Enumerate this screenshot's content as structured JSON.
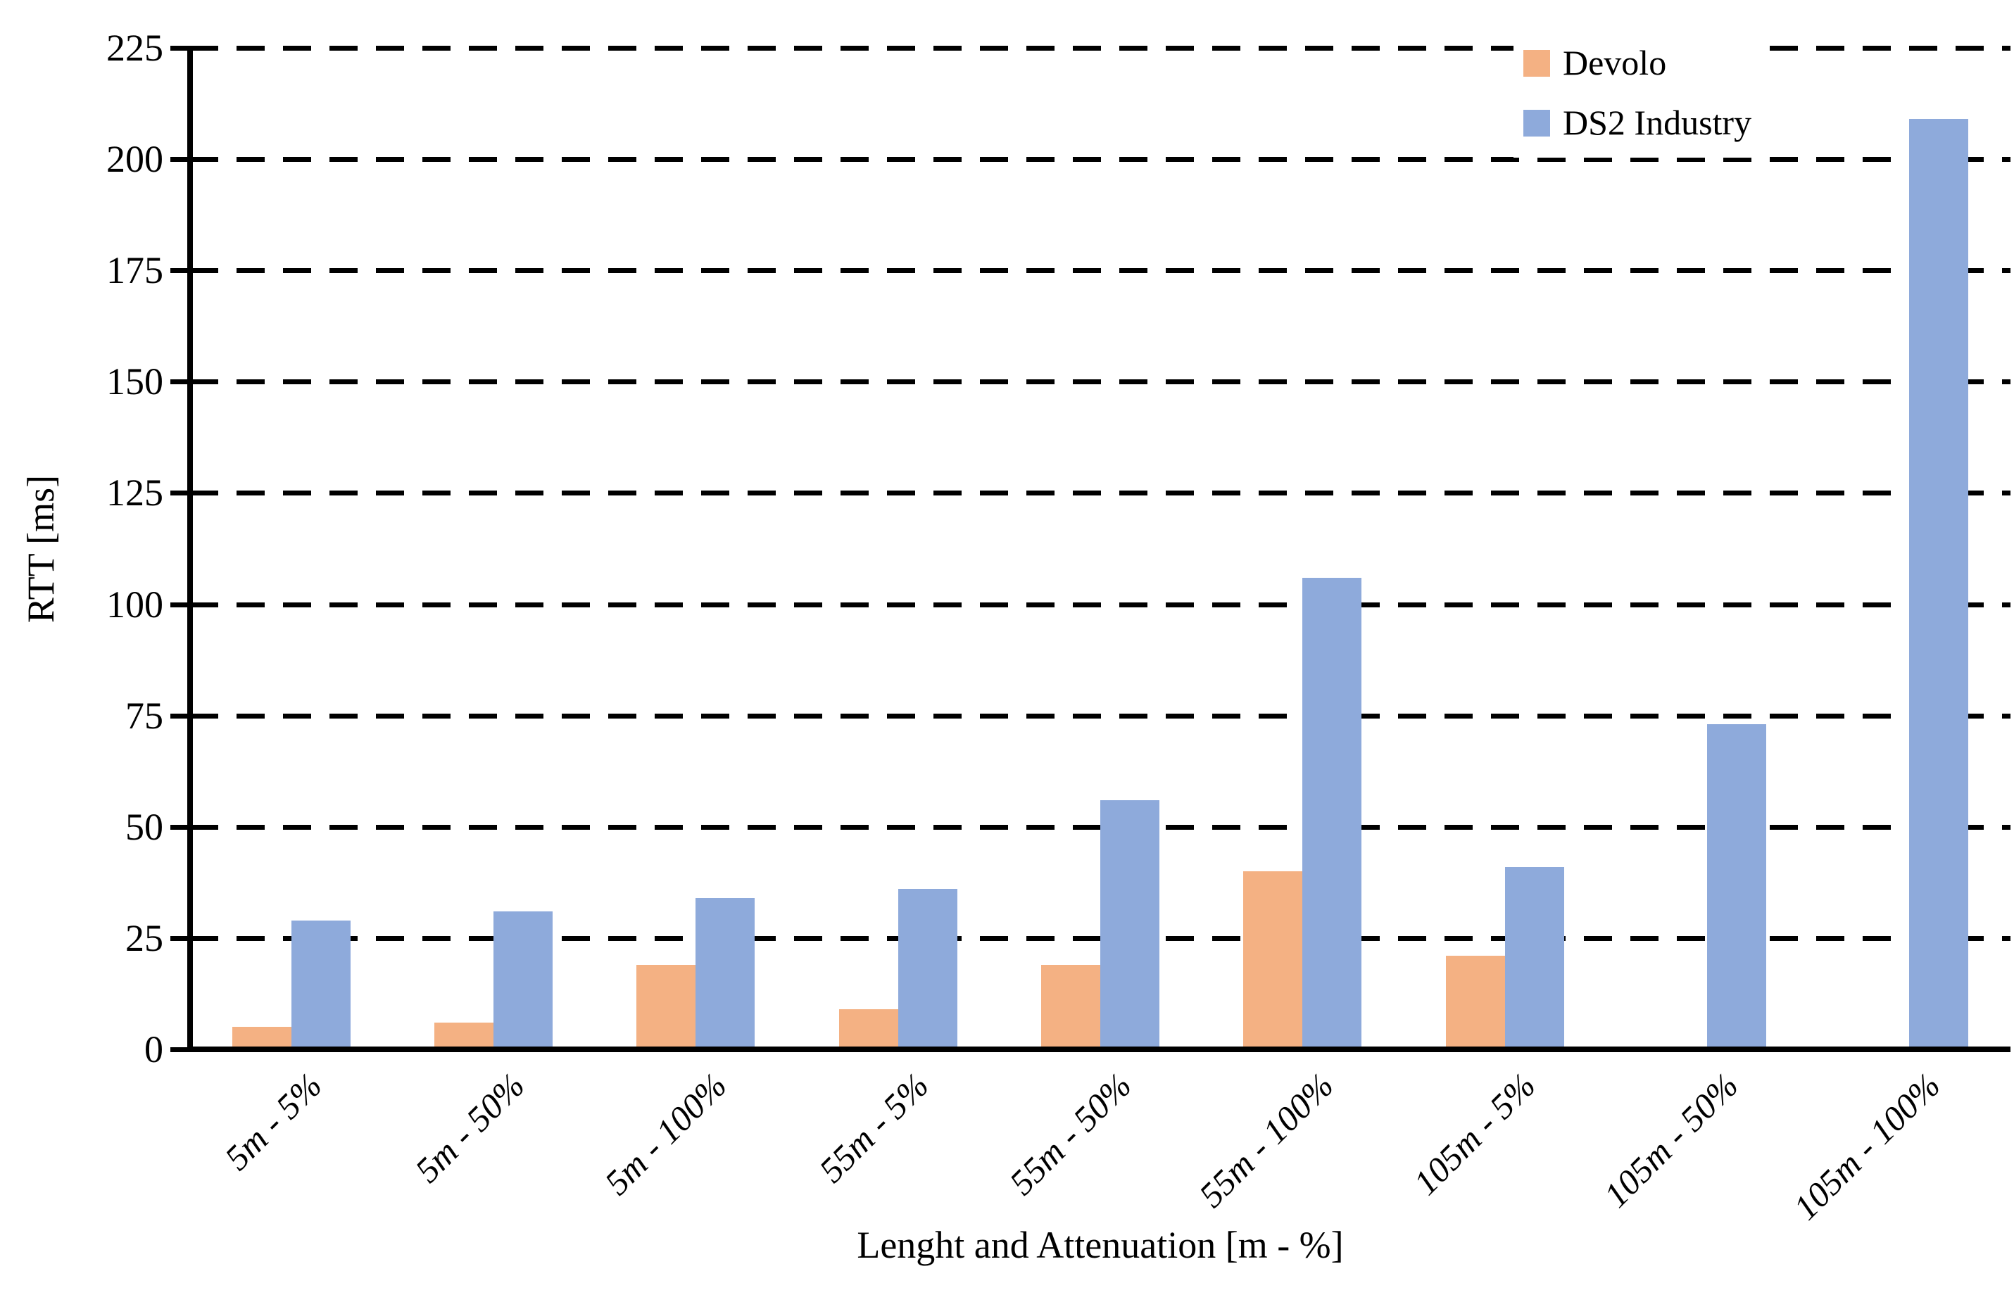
{
  "chart_data": {
    "type": "bar",
    "title": "",
    "categories": [
      "5m - 5%",
      "5m - 50%",
      "5m - 100%",
      "55m - 5%",
      "55m - 50%",
      "55m - 100%",
      "105m - 5%",
      "105m - 50%",
      "105m - 100%"
    ],
    "series": [
      {
        "name": "Devolo",
        "color": "#F4B183",
        "values": [
          5,
          6,
          19,
          9,
          19,
          40,
          21,
          null,
          null
        ]
      },
      {
        "name": "DS2 Industry",
        "color": "#8EAADB",
        "values": [
          29,
          31,
          34,
          36,
          56,
          106,
          41,
          73,
          209
        ]
      }
    ],
    "xlabel": "Lenght and Attenuation [m - %]",
    "ylabel": "RTT [ms]",
    "ylim": [
      0,
      225
    ],
    "yticks": [
      0,
      25,
      50,
      75,
      100,
      125,
      150,
      175,
      200,
      225
    ],
    "grid": "dashed-horizontal",
    "legend_position": "top-right",
    "axis_color": "#000000",
    "background_color": "#FFFFFF"
  }
}
